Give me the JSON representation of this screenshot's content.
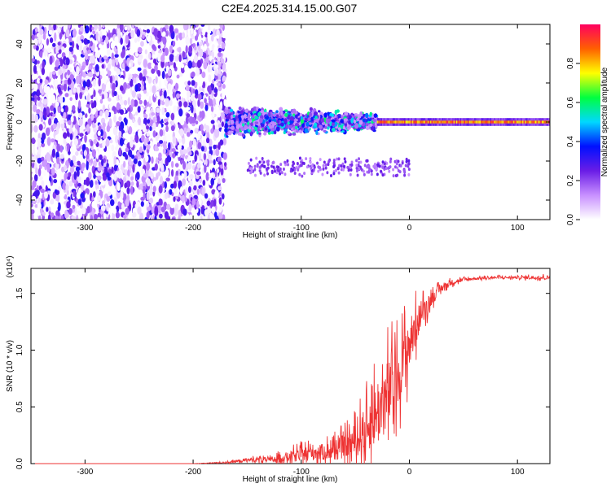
{
  "chart_data": [
    {
      "type": "heatmap",
      "title": "C2E4.2025.314.15.00.G07",
      "xlabel": "Height of straight line (km)",
      "ylabel": "Frequency (Hz)",
      "xlim": [
        -350,
        130
      ],
      "ylim": [
        -50,
        50
      ],
      "x_ticks": [
        -300,
        -200,
        -100,
        0,
        100
      ],
      "x_tick_labels": [
        "-300",
        "-200",
        "-100",
        "0",
        "100"
      ],
      "y_ticks": [
        -40,
        -20,
        0,
        20,
        40
      ],
      "y_tick_labels": [
        "-40",
        "-20",
        "0",
        "20",
        "40"
      ],
      "regions": [
        {
          "x": [
            -350,
            -170
          ],
          "frequency_spread_hz": 50,
          "dominant_amplitude": 0.1
        },
        {
          "x": [
            -170,
            -30
          ],
          "frequency_spread_hz": 10,
          "dominant_amplitude": 0.45
        },
        {
          "x": [
            -30,
            130
          ],
          "frequency_spread_hz": 2,
          "dominant_amplitude": 0.85
        }
      ],
      "colorbar": {
        "label": "Normalized spectral amplitude",
        "range": [
          0,
          1
        ],
        "ticks": [
          0.0,
          0.2,
          0.4,
          0.6,
          0.8
        ],
        "tick_labels": [
          "0.0",
          "0.2",
          "0.4",
          "0.6",
          "0.8"
        ],
        "colors": [
          "#ffffff",
          "#c890ff",
          "#6a1de6",
          "#0010ff",
          "#00d8ff",
          "#00ff40",
          "#ffff00",
          "#ff6000",
          "#ff0060"
        ]
      }
    },
    {
      "type": "line",
      "xlabel": "Height of straight line (km)",
      "ylabel": "SNR (10 * v/v)",
      "y_multiplier": "(x10⁴)",
      "xlim": [
        -350,
        130
      ],
      "ylim": [
        0,
        1.72
      ],
      "x_ticks": [
        -300,
        -200,
        -100,
        0,
        100
      ],
      "x_tick_labels": [
        "-300",
        "-200",
        "-100",
        "0",
        "100"
      ],
      "y_ticks": [
        0.0,
        0.5,
        1.0,
        1.5
      ],
      "y_tick_labels": [
        "0.0",
        "0.5",
        "1.0",
        "1.5"
      ],
      "color": "#ee3333",
      "series": [
        {
          "name": "SNR",
          "x": [
            -350,
            -300,
            -250,
            -200,
            -170,
            -160,
            -150,
            -140,
            -130,
            -120,
            -110,
            -100,
            -90,
            -80,
            -70,
            -60,
            -50,
            -40,
            -30,
            -20,
            -10,
            0,
            10,
            20,
            30,
            40,
            50,
            60,
            80,
            100,
            120,
            130
          ],
          "y": [
            0.0,
            0.0,
            0.0,
            0.0,
            0.01,
            0.02,
            0.03,
            0.04,
            0.03,
            0.05,
            0.06,
            0.08,
            0.1,
            0.1,
            0.12,
            0.15,
            0.2,
            0.3,
            0.45,
            0.6,
            0.8,
            1.05,
            1.3,
            1.45,
            1.55,
            1.6,
            1.62,
            1.63,
            1.64,
            1.64,
            1.64,
            1.64
          ],
          "spread": [
            0.0,
            0.0,
            0.0,
            0.0,
            0.01,
            0.02,
            0.03,
            0.04,
            0.04,
            0.06,
            0.08,
            0.1,
            0.12,
            0.12,
            0.15,
            0.18,
            0.25,
            0.35,
            0.5,
            0.55,
            0.45,
            0.4,
            0.2,
            0.1,
            0.06,
            0.04,
            0.03,
            0.02,
            0.02,
            0.02,
            0.03,
            0.03
          ]
        }
      ]
    }
  ]
}
